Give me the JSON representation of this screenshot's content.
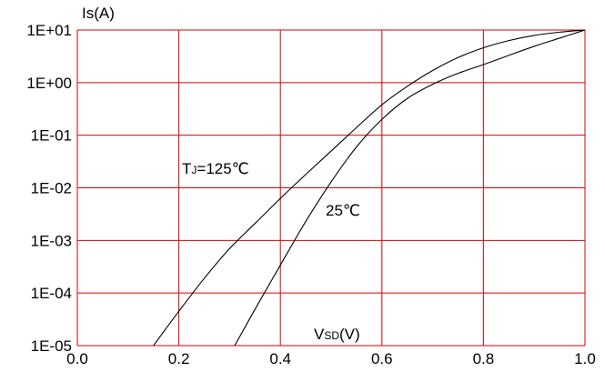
{
  "chart_data": {
    "type": "line",
    "ylabel": "Is(A)",
    "xlabel": "VSD(V)",
    "xlabel_main": "V",
    "xlabel_sub": "SD",
    "xlabel_tail": "(V)",
    "xlim": [
      0.0,
      1.0
    ],
    "ylim_log10": [
      -5,
      1
    ],
    "y_scale": "log",
    "grid": true,
    "x_ticks": [
      "0.0",
      "0.2",
      "0.4",
      "0.6",
      "0.8",
      "1.0"
    ],
    "y_ticks": [
      "1E-05",
      "1E-04",
      "1E-03",
      "1E-02",
      "1E-01",
      "1E+00",
      "1E+01"
    ],
    "series": [
      {
        "name": "TJ=125℃",
        "label_main": "T",
        "label_sub": "J",
        "label_tail": "=125℃",
        "x": [
          0.15,
          0.2,
          0.25,
          0.3,
          0.35,
          0.4,
          0.45,
          0.5,
          0.55,
          0.6,
          0.65,
          0.7,
          0.75,
          0.8,
          0.85,
          0.9,
          0.95,
          1.0
        ],
        "y": [
          1e-05,
          4.5e-05,
          0.00019,
          0.0007,
          0.0021,
          0.0063,
          0.018,
          0.05,
          0.14,
          0.38,
          0.85,
          1.7,
          3.0,
          4.6,
          6.3,
          7.9,
          9.1,
          10.0
        ]
      },
      {
        "name": "25℃",
        "label": "25℃",
        "x": [
          0.31,
          0.35,
          0.4,
          0.45,
          0.5,
          0.55,
          0.6,
          0.65,
          0.7,
          0.75,
          0.8,
          0.85,
          0.9,
          0.95,
          1.0
        ],
        "y": [
          1e-05,
          4.9e-05,
          0.00034,
          0.0023,
          0.013,
          0.06,
          0.2,
          0.5,
          0.93,
          1.5,
          2.2,
          3.3,
          4.9,
          7.0,
          10.0
        ]
      }
    ],
    "colors": {
      "grid": "#dd0000",
      "curve": "#000000"
    }
  }
}
